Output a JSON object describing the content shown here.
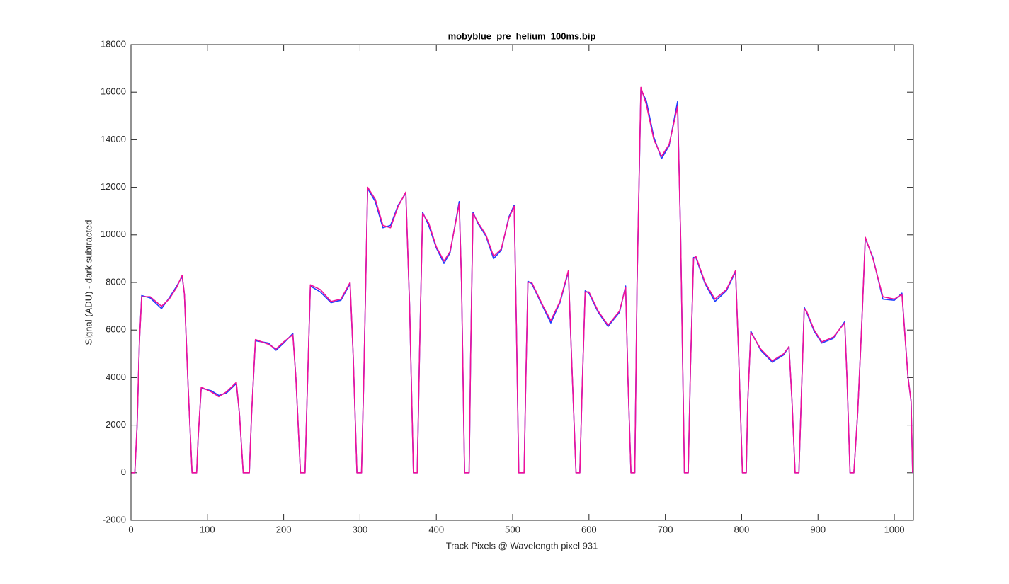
{
  "chart_data": {
    "type": "line",
    "title": "mobyblue_pre_helium_100ms.bip",
    "xlabel": "Track Pixels @ Wavelength pixel 931",
    "ylabel": "Signal (ADU) - dark subtracted",
    "xlim": [
      0,
      1025
    ],
    "ylim": [
      -2000,
      18000
    ],
    "xticks": [
      0,
      100,
      200,
      300,
      400,
      500,
      600,
      700,
      800,
      900,
      1000
    ],
    "yticks": [
      -2000,
      0,
      2000,
      4000,
      6000,
      8000,
      10000,
      12000,
      14000,
      16000,
      18000
    ],
    "grid": false,
    "x": [
      0,
      5,
      8,
      11,
      14,
      25,
      40,
      50,
      60,
      67,
      70,
      75,
      80,
      86,
      88,
      92,
      105,
      115,
      125,
      138,
      142,
      147,
      155,
      158,
      163,
      180,
      190,
      200,
      212,
      216,
      222,
      228,
      231,
      235,
      248,
      262,
      275,
      287,
      291,
      296,
      302,
      305,
      310,
      320,
      330,
      340,
      350,
      360,
      365,
      370,
      375,
      378,
      382,
      390,
      400,
      410,
      418,
      430,
      433,
      437,
      443,
      445,
      448,
      455,
      465,
      475,
      485,
      495,
      502,
      505,
      508,
      515,
      517,
      520,
      525,
      540,
      550,
      562,
      573,
      577,
      583,
      588,
      591,
      595,
      600,
      612,
      625,
      640,
      648,
      651,
      655,
      660,
      663,
      668,
      675,
      685,
      695,
      705,
      716,
      720,
      725,
      730,
      733,
      737,
      740,
      752,
      765,
      780,
      792,
      796,
      801,
      806,
      808,
      812,
      825,
      840,
      855,
      862,
      866,
      870,
      875,
      878,
      882,
      885,
      895,
      905,
      920,
      935,
      938,
      942,
      947,
      952,
      957,
      962,
      972,
      985,
      1000,
      1010,
      1018,
      1022,
      1024
    ],
    "series": [
      {
        "color": "#1f3fff",
        "values": [
          0,
          0,
          2000,
          5500,
          7450,
          7350,
          6900,
          7350,
          7850,
          8250,
          7500,
          3500,
          0,
          0,
          1500,
          3550,
          3450,
          3250,
          3350,
          3750,
          2500,
          0,
          0,
          2500,
          5550,
          5450,
          5150,
          5450,
          5850,
          4000,
          0,
          0,
          3500,
          7850,
          7600,
          7150,
          7250,
          7950,
          5000,
          0,
          0,
          4000,
          11950,
          11400,
          10300,
          10400,
          11250,
          11750,
          7000,
          0,
          0,
          5000,
          10950,
          10400,
          9450,
          8800,
          9250,
          11400,
          8000,
          0,
          0,
          5000,
          10950,
          10450,
          9950,
          9000,
          9350,
          10750,
          11250,
          6000,
          0,
          0,
          3500,
          8050,
          7950,
          6950,
          6300,
          7150,
          8450,
          5000,
          0,
          0,
          3500,
          7650,
          7550,
          6750,
          6150,
          6750,
          7850,
          4000,
          0,
          0,
          8000,
          16100,
          15650,
          14100,
          13200,
          13750,
          15600,
          10000,
          0,
          0,
          4500,
          9050,
          9050,
          7950,
          7200,
          7650,
          8450,
          5000,
          0,
          0,
          3000,
          5950,
          5150,
          4650,
          4950,
          5300,
          3000,
          0,
          0,
          3000,
          6950,
          6750,
          5950,
          5450,
          5650,
          6350,
          4000,
          0,
          0,
          2500,
          6000,
          9850,
          9050,
          7300,
          7250,
          7550,
          4000,
          3000,
          0
        ]
      },
      {
        "color": "#f0109a",
        "values": [
          0,
          0,
          2000,
          5500,
          7400,
          7400,
          7000,
          7300,
          7800,
          8300,
          7500,
          3500,
          0,
          0,
          1500,
          3600,
          3400,
          3200,
          3400,
          3800,
          2500,
          0,
          0,
          2500,
          5600,
          5400,
          5200,
          5500,
          5800,
          4000,
          0,
          0,
          3500,
          7900,
          7700,
          7200,
          7300,
          8000,
          5000,
          0,
          0,
          4000,
          12000,
          11500,
          10400,
          10300,
          11200,
          11800,
          7000,
          0,
          0,
          5000,
          10900,
          10500,
          9500,
          8900,
          9300,
          11300,
          8000,
          0,
          0,
          5000,
          10900,
          10500,
          10000,
          9100,
          9400,
          10700,
          11200,
          6000,
          0,
          0,
          3500,
          8000,
          8000,
          7000,
          6400,
          7200,
          8500,
          5000,
          0,
          0,
          3500,
          7600,
          7600,
          6800,
          6200,
          6800,
          7800,
          4000,
          0,
          0,
          8000,
          16200,
          15500,
          14000,
          13300,
          13800,
          15400,
          10000,
          0,
          0,
          4500,
          9000,
          9100,
          8000,
          7300,
          7700,
          8500,
          5000,
          0,
          0,
          3000,
          5900,
          5200,
          4700,
          5000,
          5300,
          3000,
          0,
          0,
          3000,
          6900,
          6800,
          6000,
          5500,
          5700,
          6300,
          4000,
          0,
          0,
          2500,
          6000,
          9900,
          9000,
          7400,
          7300,
          7500,
          4000,
          3000,
          0
        ]
      }
    ]
  }
}
